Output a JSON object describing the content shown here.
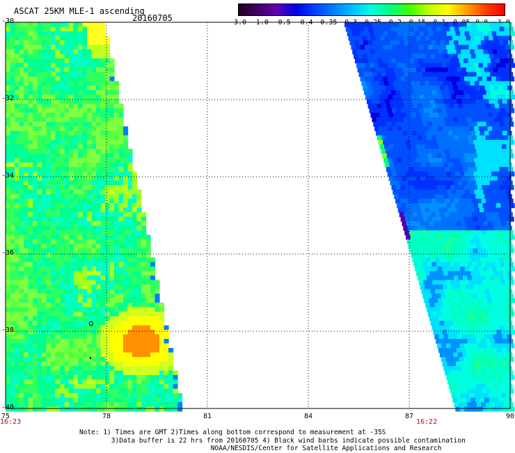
{
  "header": {
    "title": "ASCAT 25KM MLE-1 ascending",
    "date": "20160705"
  },
  "colorbar": {
    "labels": [
      "-3.0",
      "-1.0",
      "-0.5",
      "-0.4",
      "-0.35",
      "-0.3",
      "-0.25",
      "-0.2",
      "-0.15",
      "-0.1",
      "-0.05",
      "0.0",
      "1.0"
    ],
    "colors": [
      "#200020",
      "#400060",
      "#6000b0",
      "#0000e0",
      "#0040ff",
      "#0080ff",
      "#00c0ff",
      "#00ffe0",
      "#00ff80",
      "#40ff00",
      "#c0ff00",
      "#ffff00",
      "#ffa000",
      "#ff4000",
      "#ff0000"
    ]
  },
  "axes": {
    "lat_labels": [
      "-30",
      "-32",
      "-34",
      "-36",
      "-38",
      "-40"
    ],
    "lon_labels": [
      "75",
      "78",
      "81",
      "84",
      "87",
      "90"
    ]
  },
  "swath_times": {
    "left": "16:23",
    "right": "16:22"
  },
  "notes": {
    "line1": "Note: 1) Times are GMT 2)Times along bottom correspond to measurement at -35S",
    "line2": "3)Data buffer is 22 hrs from 20160705 4) Black wind barbs indicate possible contamination",
    "line3": "NOAA/NESDIS/Center for Satellite Applications and Research"
  }
}
